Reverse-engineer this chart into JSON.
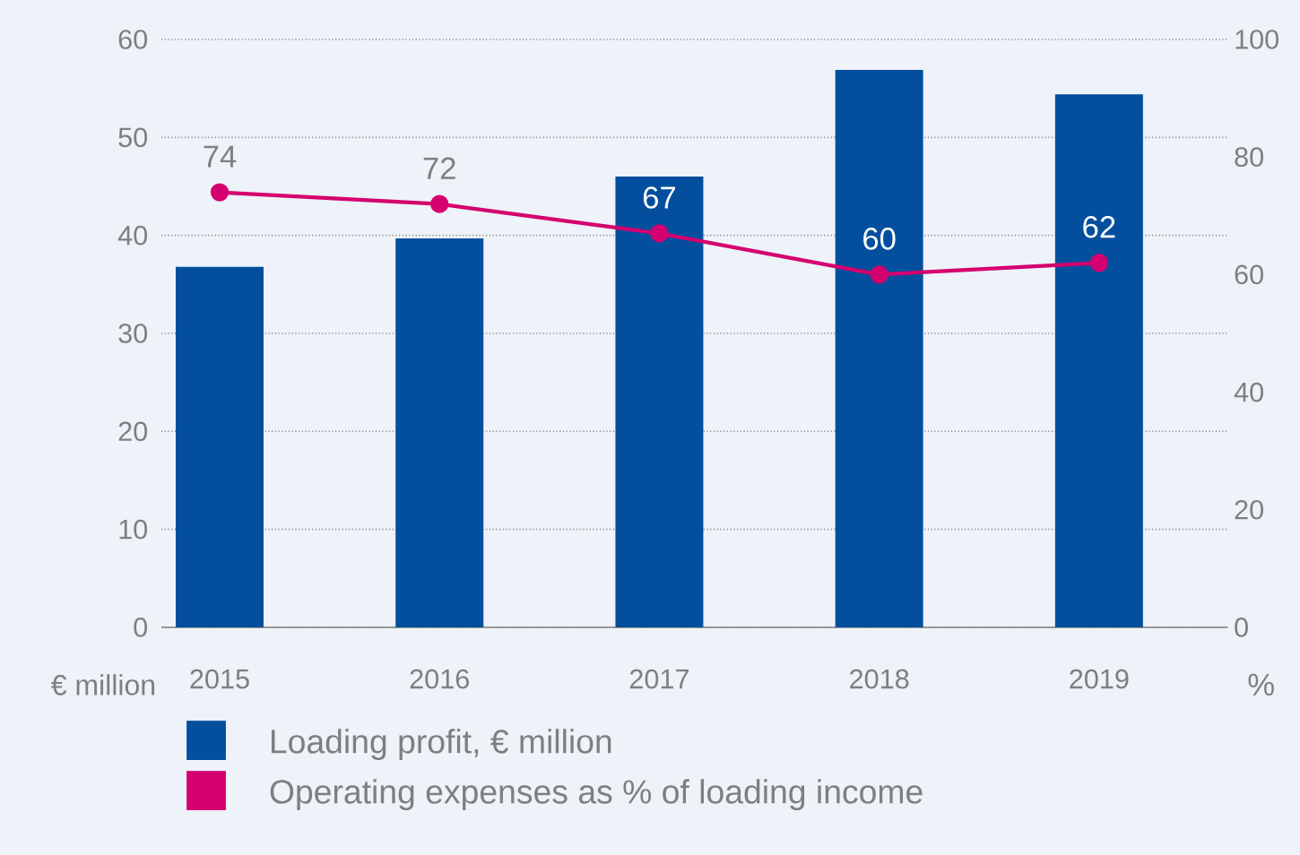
{
  "chart_data": {
    "type": "bar",
    "ylabel": "€ million",
    "y2label": "%",
    "categories": [
      "2015",
      "2016",
      "2017",
      "2018",
      "2019"
    ],
    "series": [
      {
        "name": "Loading profit, € million",
        "color": "#034f9d",
        "values": [
          36.8,
          39.7,
          46.0,
          56.9,
          54.4
        ]
      },
      {
        "name": "Operating expenses as % of loading income",
        "type": "line",
        "axis": "y2",
        "color": "#d4006f",
        "marker": "circle",
        "values": [
          74,
          72,
          67,
          60,
          62
        ],
        "value_labels": [
          "74",
          "72",
          "67",
          "60",
          "62"
        ]
      }
    ],
    "ylim": [
      0,
      60
    ],
    "yticks": [
      0,
      10,
      20,
      30,
      40,
      50,
      60
    ],
    "y2lim": [
      0,
      100
    ],
    "y2ticks": [
      0,
      20,
      40,
      60,
      80,
      100
    ],
    "grid": "y",
    "legend": "bottom"
  }
}
